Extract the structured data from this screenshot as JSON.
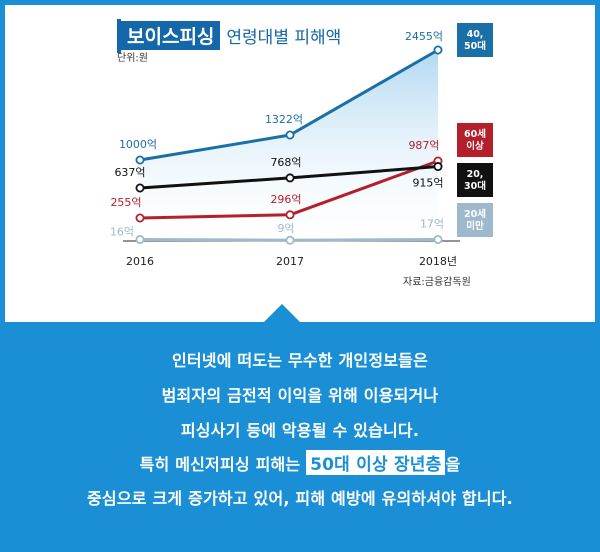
{
  "chart_data": {
    "type": "line",
    "title_main": "보이스피싱",
    "title_sub": "연령대별 피해액",
    "unit": "단위:원",
    "source": "자료:금융감독원",
    "x": [
      "2016",
      "2017",
      "2018년"
    ],
    "series": [
      {
        "name": "40,\n50대",
        "color": "#1a6fa6",
        "values": [
          1000,
          1322,
          2455
        ],
        "labels": [
          "1000억",
          "1322억",
          "2455억"
        ]
      },
      {
        "name": "60세\n이상",
        "color": "#b3202a",
        "values": [
          255,
          296,
          987
        ],
        "labels": [
          "255억",
          "296억",
          "987억"
        ]
      },
      {
        "name": "20,\n30대",
        "color": "#111111",
        "values": [
          637,
          768,
          915
        ],
        "labels": [
          "637억",
          "768억",
          "915억"
        ]
      },
      {
        "name": "20세\n미만",
        "color": "#9fb9cc",
        "values": [
          16,
          9,
          17
        ],
        "labels": [
          "16억",
          "9억",
          "17억"
        ]
      }
    ]
  },
  "message": {
    "line1": "인터넷에 떠도는 무수한 개인정보들은",
    "line2": "범죄자의 금전적 이익을 위해 이용되거나",
    "line3": "피싱사기 등에 악용될 수 있습니다.",
    "line4_pre": "특히 메신저피싱 피해는 ",
    "line4_hl": "50대 이상 장년층",
    "line4_post": "을",
    "line5": "중심으로 크게 증가하고 있어, 피해 예방에 유의하셔야 합니다."
  }
}
